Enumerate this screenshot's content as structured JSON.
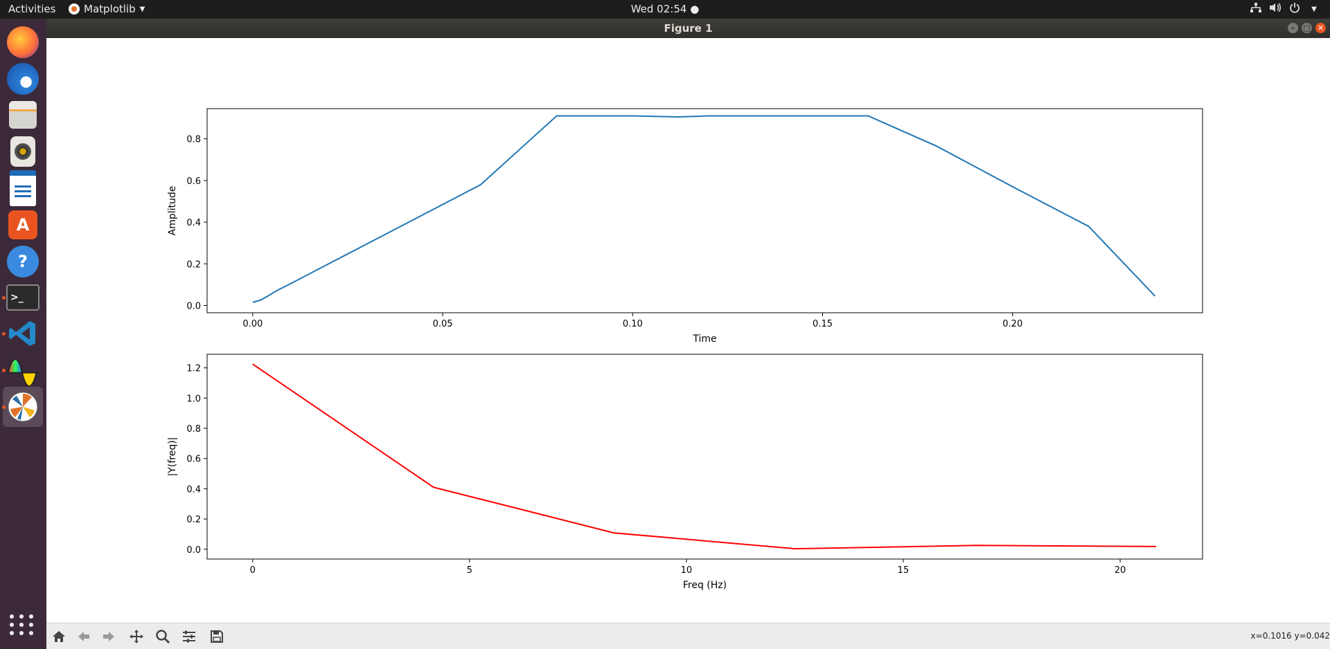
{
  "topbar": {
    "activities": "Activities",
    "app_name": "Matplotlib",
    "clock": "Wed 02:54",
    "clock_dot": "●",
    "tray_icons": [
      "network-icon",
      "volume-icon",
      "power-icon"
    ]
  },
  "dock": {
    "items": [
      "firefox-icon",
      "thunderbird-icon",
      "files-icon",
      "rhythmbox-icon",
      "libreoffice-writer-icon",
      "software-center-icon",
      "help-icon",
      "terminal-icon",
      "vscode-icon",
      "color-picker-icon",
      "matplotlib-icon"
    ],
    "active": "matplotlib-icon",
    "running": [
      "terminal-icon",
      "vscode-icon",
      "color-picker-icon",
      "matplotlib-icon"
    ]
  },
  "window": {
    "title": "Figure 1"
  },
  "toolbar": {
    "buttons": [
      "home-icon",
      "back-icon",
      "forward-icon",
      "pan-icon",
      "zoom-icon",
      "configure-subplots-icon",
      "save-icon"
    ]
  },
  "status": {
    "coords": "x=0.1016 y=0.042"
  },
  "chart_data": [
    {
      "type": "line",
      "color": "#1f77b4",
      "xlabel": "Time",
      "ylabel": "Amplitude",
      "xlim": [
        -0.012,
        0.25
      ],
      "ylim": [
        -0.035,
        0.945
      ],
      "xticks": [
        0.0,
        0.05,
        0.1,
        0.15,
        0.2
      ],
      "xtick_labels": [
        "0.00",
        "0.05",
        "0.10",
        "0.15",
        "0.20"
      ],
      "yticks": [
        0.0,
        0.2,
        0.4,
        0.6,
        0.8
      ],
      "ytick_labels": [
        "0.0",
        "0.2",
        "0.4",
        "0.6",
        "0.8"
      ],
      "x": [
        0.0,
        0.002,
        0.004,
        0.006,
        0.01,
        0.02,
        0.04,
        0.06,
        0.08,
        0.1,
        0.112,
        0.12,
        0.14,
        0.162,
        0.18,
        0.2,
        0.22,
        0.2375
      ],
      "y": [
        0.015,
        0.025,
        0.045,
        0.068,
        0.105,
        0.2,
        0.39,
        0.58,
        0.91,
        0.91,
        0.905,
        0.91,
        0.91,
        0.91,
        0.765,
        0.57,
        0.38,
        0.045
      ]
    },
    {
      "type": "line",
      "color": "#ff0000",
      "xlabel": "Freq (Hz)",
      "ylabel": "|Y(freq)|",
      "xlim": [
        -1.05,
        21.9
      ],
      "ylim": [
        -0.065,
        1.29
      ],
      "xticks": [
        0,
        5,
        10,
        15,
        20
      ],
      "xtick_labels": [
        "0",
        "5",
        "10",
        "15",
        "20"
      ],
      "yticks": [
        0.0,
        0.2,
        0.4,
        0.6,
        0.8,
        1.0,
        1.2
      ],
      "ytick_labels": [
        "0.0",
        "0.2",
        "0.4",
        "0.6",
        "0.8",
        "1.0",
        "1.2"
      ],
      "x": [
        0.0,
        4.17,
        8.33,
        12.5,
        16.67,
        20.83
      ],
      "y": [
        1.225,
        0.41,
        0.108,
        0.003,
        0.025,
        0.018
      ]
    }
  ]
}
